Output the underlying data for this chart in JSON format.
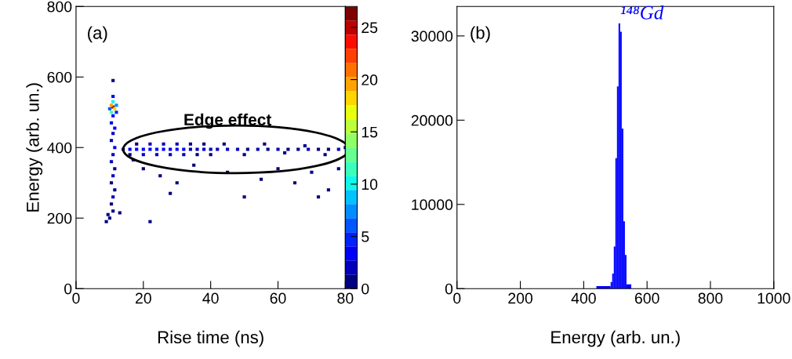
{
  "chart_data": [
    {
      "type": "scatter",
      "xlabel": "Rise time (ns)",
      "ylabel": "Energy (arb. un.)",
      "marker": "square",
      "x": [
        11,
        10.5,
        11.5,
        11,
        10.5,
        12,
        11,
        10,
        12,
        11,
        10.5,
        11.5,
        11,
        10.5,
        11.5,
        11,
        10.5,
        11.5,
        11,
        10.5,
        11.5,
        11,
        10.5,
        11,
        9.5,
        10,
        11,
        9,
        13,
        14,
        16,
        18,
        20,
        22,
        24,
        26,
        28,
        30,
        32,
        34,
        36,
        38,
        40,
        16,
        20,
        24,
        28,
        32,
        36,
        40,
        18,
        22,
        26,
        30,
        34,
        38,
        42,
        45,
        48,
        51,
        54,
        57,
        60,
        63,
        66,
        69,
        72,
        75,
        78,
        44,
        50,
        56,
        62,
        68,
        74,
        80,
        20,
        25,
        30,
        35,
        28,
        45,
        55,
        65,
        75,
        72,
        60,
        50,
        17,
        22,
        70,
        78
      ],
      "values": [
        515,
        520,
        510,
        530,
        500,
        520,
        545,
        510,
        500,
        490,
        470,
        455,
        440,
        420,
        400,
        380,
        360,
        340,
        320,
        300,
        280,
        260,
        240,
        220,
        210,
        200,
        590,
        190,
        215,
        395,
        395,
        395,
        395,
        395,
        395,
        395,
        395,
        395,
        395,
        395,
        395,
        395,
        395,
        380,
        380,
        380,
        380,
        380,
        380,
        380,
        410,
        410,
        410,
        410,
        410,
        410,
        395,
        395,
        395,
        395,
        395,
        395,
        395,
        395,
        395,
        395,
        395,
        395,
        395,
        410,
        380,
        410,
        385,
        405,
        380,
        400,
        340,
        320,
        300,
        350,
        270,
        330,
        310,
        300,
        280,
        260,
        340,
        260,
        365,
        190,
        330,
        340
      ],
      "cvalues": [
        27,
        20,
        18,
        10,
        12,
        8,
        4,
        6,
        5,
        4,
        3,
        3,
        2,
        2,
        3,
        2,
        2,
        1,
        2,
        1,
        1,
        2,
        1,
        1,
        1,
        1,
        1,
        1,
        1,
        2,
        3,
        3,
        3,
        3,
        3,
        3,
        3,
        3,
        3,
        2,
        2,
        2,
        2,
        1,
        2,
        2,
        2,
        2,
        1,
        1,
        1,
        2,
        2,
        2,
        1,
        1,
        2,
        2,
        2,
        1,
        2,
        1,
        2,
        1,
        1,
        2,
        1,
        1,
        2,
        1,
        1,
        1,
        1,
        1,
        1,
        1,
        1,
        1,
        1,
        1,
        1,
        1,
        1,
        1,
        1,
        1,
        1,
        1,
        1,
        1,
        1,
        1
      ],
      "clim": [
        0,
        27
      ],
      "cticks": [
        0,
        5,
        10,
        15,
        20,
        25
      ],
      "xlim": [
        0,
        80
      ],
      "xticks": [
        0,
        20,
        40,
        60,
        80
      ],
      "ylim": [
        0,
        800
      ],
      "yticks": [
        0,
        200,
        400,
        600,
        800
      ],
      "annotations": [
        "(a)",
        {
          "text": "Edge effect",
          "x": 45,
          "y": 395
        }
      ]
    },
    {
      "type": "histogram",
      "xlabel": "Energy (arb. un.)",
      "color": "#0000ff",
      "bins": [
        440,
        485,
        490,
        495,
        500,
        505,
        510,
        515,
        520,
        525,
        530,
        535,
        550
      ],
      "values": [
        300,
        800,
        1800,
        5000,
        15500,
        24000,
        31500,
        30500,
        19000,
        8000,
        4000,
        500
      ],
      "xlim": [
        0,
        1000
      ],
      "xticks": [
        0,
        200,
        400,
        600,
        800,
        1000
      ],
      "ylim": [
        0,
        33500
      ],
      "yticks": [
        0,
        10000,
        20000,
        30000
      ],
      "annotations": [
        "(b)",
        {
          "text": "¹⁴⁸Gd",
          "x": 515,
          "y": 31500
        }
      ]
    }
  ]
}
